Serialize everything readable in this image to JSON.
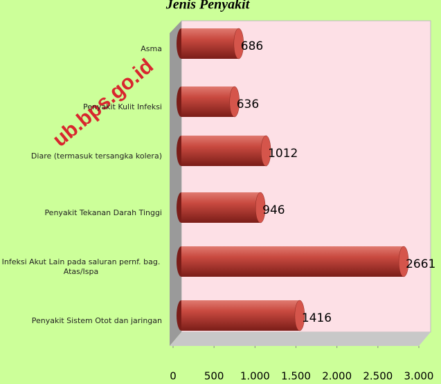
{
  "chart_data": {
    "type": "bar",
    "orientation": "horizontal",
    "title": "Jenis Penyakit",
    "watermark": "ub.bps.go.id",
    "categories": [
      "Asma",
      "Penyakit Kulit Infeksi",
      "Diare (termasuk tersangka kolera)",
      "Penyakit Tekanan Darah Tinggi",
      "Infeksi Akut Lain pada saluran pernf. bag. Atas/Ispa",
      "Penyakit Sistem  Otot dan jaringan"
    ],
    "values": [
      686,
      636,
      1012,
      946,
      2661,
      1416
    ],
    "color": "#c0392b",
    "xlim": [
      0,
      3000
    ],
    "xticks": [
      0,
      500,
      {
        "value": 1000,
        "label": "1.000"
      },
      {
        "value": 1500,
        "label": "1.500"
      },
      {
        "value": 2000,
        "label": "2.000"
      },
      {
        "value": 2500,
        "label": "2.500"
      },
      {
        "value": 3000,
        "label": "3.000"
      }
    ]
  }
}
